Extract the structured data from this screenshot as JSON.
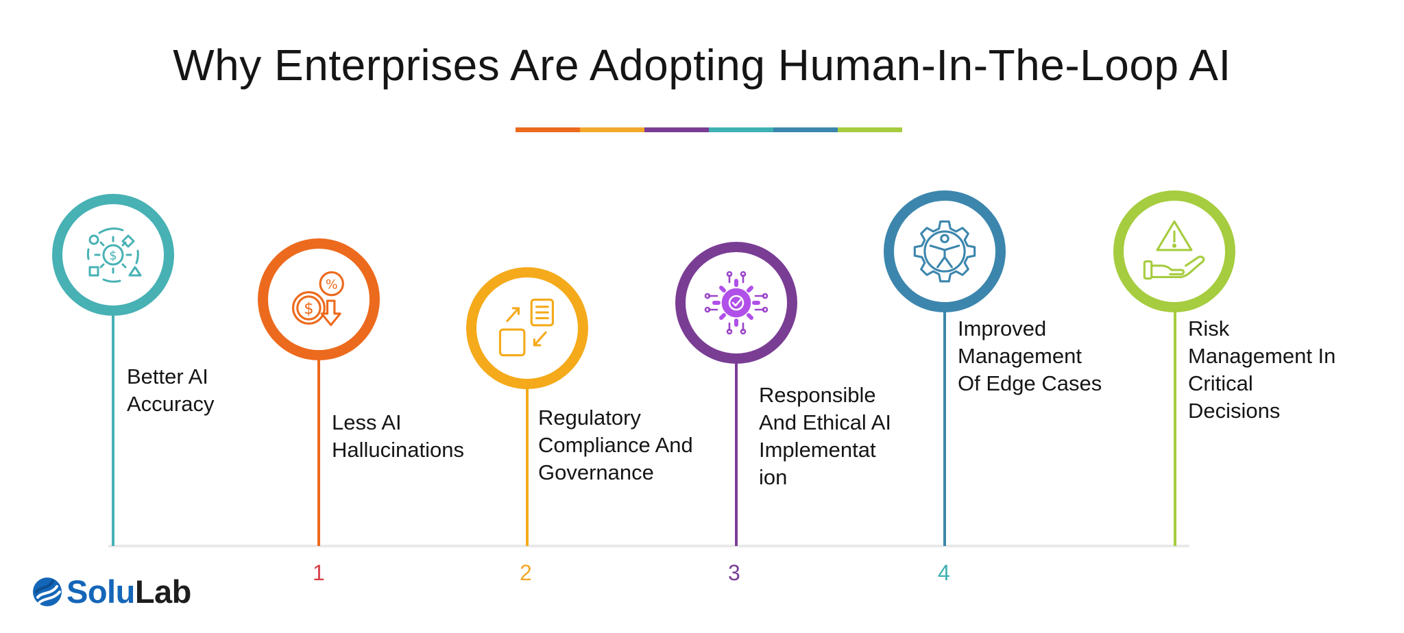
{
  "title": "Why Enterprises Are Adopting Human-In-The-Loop AI",
  "title_bar_colors": [
    "#ec6a1d",
    "#f2a82b",
    "#7a3d94",
    "#3fb0b3",
    "#3c86ad",
    "#a6cc3f"
  ],
  "items": [
    {
      "label": "Better AI\nAccuracy",
      "color": "#47b1b4",
      "icon": "gear-cycle-dollar-icon"
    },
    {
      "label": "Less AI\nHallucinations",
      "color": "#ec6a1d",
      "icon": "dollar-percent-down-icon",
      "number": "1",
      "number_color": "#d8414a"
    },
    {
      "label": "Regulatory\nCompliance And\nGovernance",
      "color": "#f4aa1a",
      "icon": "document-exchange-icon",
      "number": "2",
      "number_color": "#f2a82b"
    },
    {
      "label": "Responsible\nAnd Ethical AI\nImplementat\nion",
      "color": "#7a3d94",
      "icon": "ai-gear-chip-icon",
      "number": "3",
      "number_color": "#7a3d94"
    },
    {
      "label": "Improved\nManagement\nOf Edge Cases",
      "color": "#3c86ad",
      "icon": "gear-person-icon",
      "number": "4",
      "number_color": "#3fb0b3"
    },
    {
      "label": "Risk\nManagement In\nCritical\nDecisions",
      "color": "#a6cc3f",
      "icon": "hand-warning-icon"
    }
  ],
  "logo": {
    "part1": "Solu",
    "part2": "Lab",
    "color1": "#1466b8",
    "color2": "#1d1d1d"
  }
}
